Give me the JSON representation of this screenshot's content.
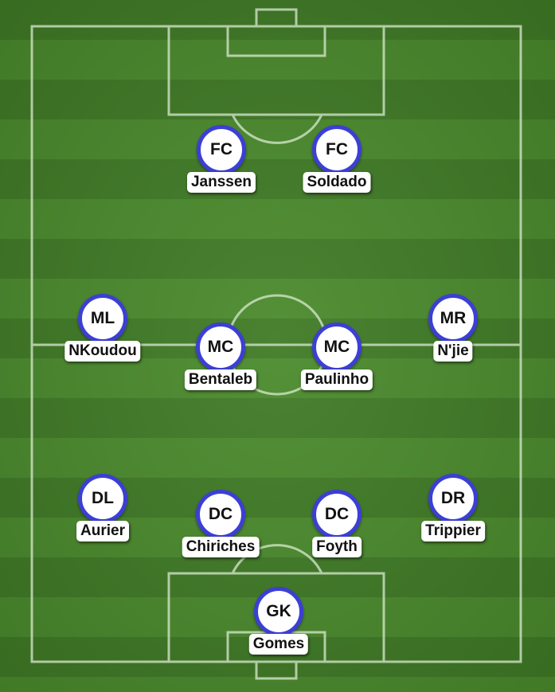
{
  "colors": {
    "pitch_dark": "#3f7a25",
    "pitch_light": "#4a8a2c",
    "line": "#d9ead0",
    "badge_border": "#3c3fd4",
    "badge_fill": "#ffffff"
  },
  "players": {
    "fc_left": {
      "position": "FC",
      "name": "Janssen"
    },
    "fc_right": {
      "position": "FC",
      "name": "Soldado"
    },
    "ml": {
      "position": "ML",
      "name": "NKoudou"
    },
    "mc_left": {
      "position": "MC",
      "name": "Bentaleb"
    },
    "mc_right": {
      "position": "MC",
      "name": "Paulinho"
    },
    "mr": {
      "position": "MR",
      "name": "N'jie"
    },
    "dl": {
      "position": "DL",
      "name": "Aurier"
    },
    "dc_left": {
      "position": "DC",
      "name": "Chiriches"
    },
    "dc_right": {
      "position": "DC",
      "name": "Foyth"
    },
    "dr": {
      "position": "DR",
      "name": "Trippier"
    },
    "gk": {
      "position": "GK",
      "name": "Gomes"
    }
  }
}
